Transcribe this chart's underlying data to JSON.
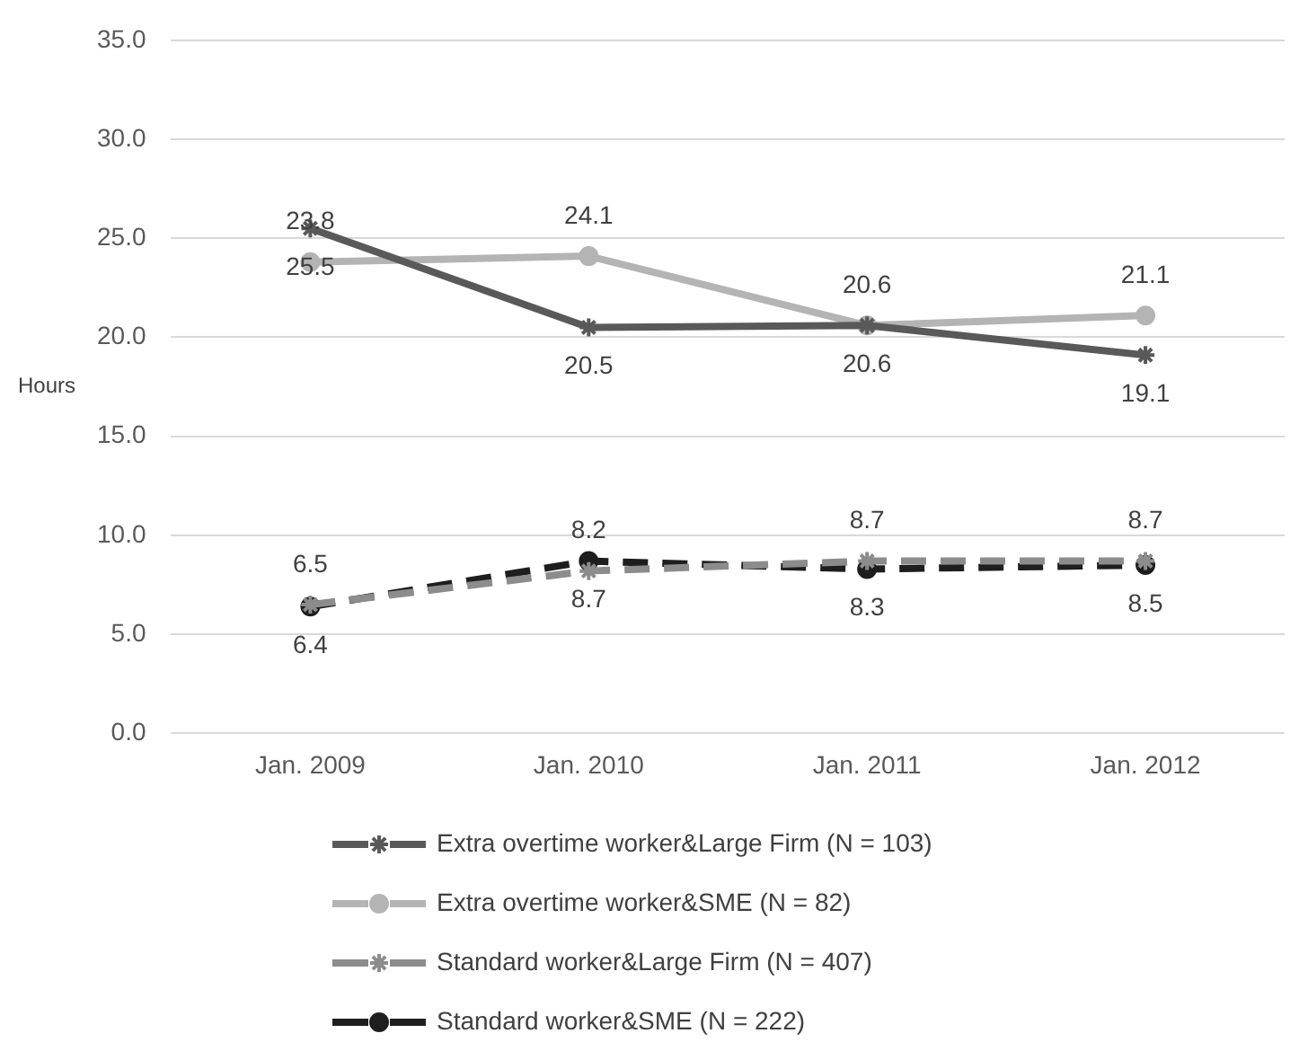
{
  "chart_data": {
    "type": "line",
    "ylabel": "Hours",
    "categories": [
      "Jan. 2009",
      "Jan. 2010",
      "Jan. 2011",
      "Jan. 2012"
    ],
    "series": [
      {
        "name": "Extra overtime worker&Large Firm (N = 103)",
        "color": "#595959",
        "values": [
          25.5,
          20.5,
          20.6,
          19.1
        ],
        "marker": "cross",
        "line_style": "solid"
      },
      {
        "name": "Extra overtime worker&SME (N = 82)",
        "color": "#b4b4b4",
        "values": [
          23.8,
          24.1,
          20.6,
          21.1
        ],
        "marker": "circle",
        "line_style": "solid"
      },
      {
        "name": "Standard worker&Large Firm (N = 407)",
        "color": "#8c8c8c",
        "values": [
          6.5,
          8.2,
          8.7,
          8.7
        ],
        "marker": "cross",
        "line_style": "dashed"
      },
      {
        "name": "Standard worker&SME (N = 222)",
        "color": "#1e1e1e",
        "values": [
          6.4,
          8.7,
          8.3,
          8.5
        ],
        "marker": "circle",
        "line_style": "dashed"
      }
    ],
    "ylim": [
      0,
      35
    ],
    "yticks": [
      {
        "value": 0,
        "label": "0.0"
      },
      {
        "value": 5,
        "label": "5.0"
      },
      {
        "value": 10,
        "label": "10.0"
      },
      {
        "value": 15,
        "label": "15.0"
      },
      {
        "value": 20,
        "label": "20.0"
      },
      {
        "value": 25,
        "label": "25.0"
      },
      {
        "value": 30,
        "label": "30.0"
      },
      {
        "value": 35,
        "label": "35.0"
      }
    ],
    "grid": "y",
    "legend": "bottom",
    "data_labels": true
  }
}
